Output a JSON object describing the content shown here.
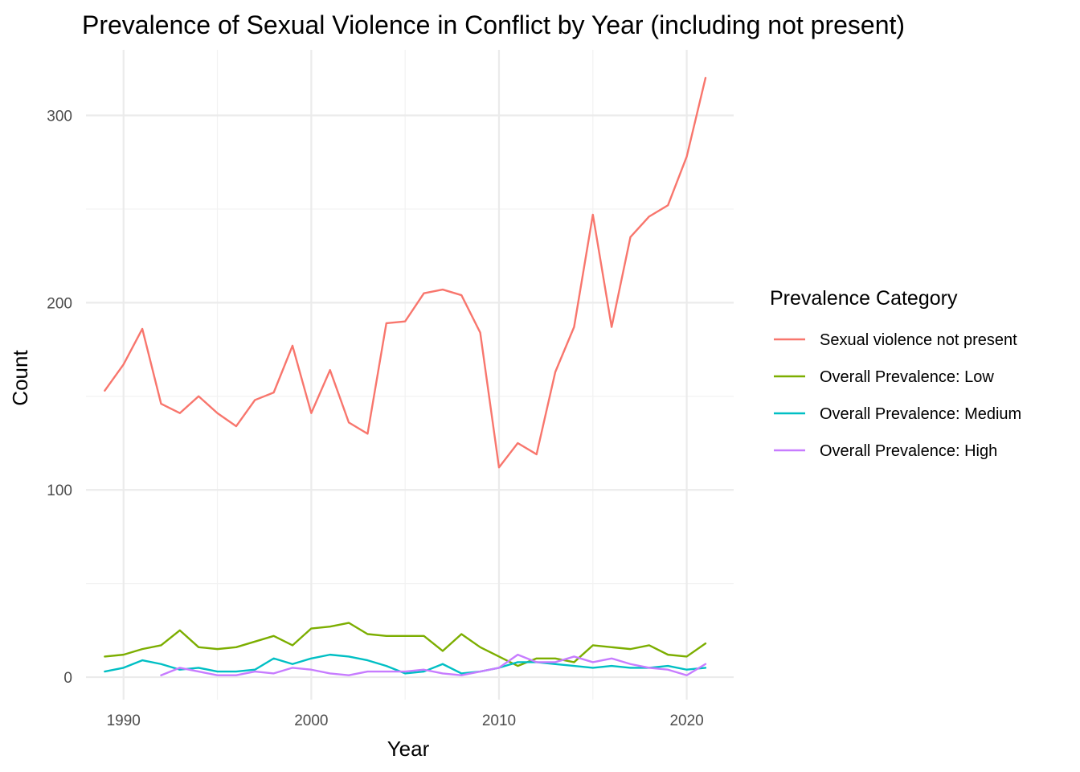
{
  "chart_data": {
    "type": "line",
    "title": "Prevalence of Sexual Violence in Conflict by Year (including not present)",
    "xlabel": "Year",
    "ylabel": "Count",
    "xlim": [
      1988,
      2022.5
    ],
    "ylim": [
      -12,
      335
    ],
    "x_ticks": [
      1990,
      2000,
      2010,
      2020
    ],
    "x_minor_ticks": [
      1995,
      2005,
      2015
    ],
    "y_ticks": [
      0,
      100,
      200,
      300
    ],
    "y_minor_ticks": [
      50,
      150,
      250
    ],
    "grid": true,
    "legend": {
      "title": "Prevalence Category",
      "position": "right"
    },
    "series": [
      {
        "name": "Sexual violence not present",
        "color": "#F8766D",
        "x": [
          1989,
          1990,
          1991,
          1992,
          1993,
          1994,
          1995,
          1996,
          1997,
          1998,
          1999,
          2000,
          2001,
          2002,
          2003,
          2004,
          2005,
          2006,
          2007,
          2008,
          2009,
          2010,
          2011,
          2012,
          2013,
          2014,
          2015,
          2016,
          2017,
          2018,
          2019,
          2020,
          2021
        ],
        "values": [
          153,
          167,
          186,
          146,
          141,
          150,
          141,
          134,
          148,
          152,
          177,
          141,
          164,
          136,
          130,
          189,
          190,
          205,
          207,
          204,
          184,
          112,
          125,
          119,
          163,
          187,
          247,
          187,
          235,
          246,
          252,
          278,
          320
        ]
      },
      {
        "name": "Overall Prevalence: Low",
        "color": "#7CAE00",
        "x": [
          1989,
          1990,
          1991,
          1992,
          1993,
          1994,
          1995,
          1996,
          1997,
          1998,
          1999,
          2000,
          2001,
          2002,
          2003,
          2004,
          2005,
          2006,
          2007,
          2008,
          2009,
          2010,
          2011,
          2012,
          2013,
          2014,
          2015,
          2016,
          2017,
          2018,
          2019,
          2020,
          2021
        ],
        "values": [
          11,
          12,
          15,
          17,
          25,
          16,
          15,
          16,
          19,
          22,
          17,
          26,
          27,
          29,
          23,
          22,
          22,
          22,
          14,
          23,
          16,
          11,
          6,
          10,
          10,
          8,
          17,
          16,
          15,
          17,
          12,
          11,
          18
        ]
      },
      {
        "name": "Overall Prevalence: Medium",
        "color": "#00BFC4",
        "x": [
          1989,
          1990,
          1991,
          1992,
          1993,
          1994,
          1995,
          1996,
          1997,
          1998,
          1999,
          2000,
          2001,
          2002,
          2003,
          2004,
          2005,
          2006,
          2007,
          2008,
          2009,
          2010,
          2011,
          2012,
          2013,
          2014,
          2015,
          2016,
          2017,
          2018,
          2019,
          2020,
          2021
        ],
        "values": [
          3,
          5,
          9,
          7,
          4,
          5,
          3,
          3,
          4,
          10,
          7,
          10,
          12,
          11,
          9,
          6,
          2,
          3,
          7,
          2,
          3,
          5,
          8,
          8,
          7,
          6,
          5,
          6,
          5,
          5,
          6,
          4,
          5
        ]
      },
      {
        "name": "Overall Prevalence: High",
        "color": "#C77CFF",
        "x": [
          1992,
          1993,
          1994,
          1995,
          1996,
          1997,
          1998,
          1999,
          2000,
          2001,
          2002,
          2003,
          2004,
          2005,
          2006,
          2007,
          2008,
          2009,
          2010,
          2011,
          2012,
          2013,
          2014,
          2015,
          2016,
          2017,
          2018,
          2019,
          2020,
          2021
        ],
        "values": [
          1,
          5,
          3,
          1,
          1,
          3,
          2,
          5,
          4,
          2,
          1,
          3,
          3,
          3,
          4,
          2,
          1,
          3,
          5,
          12,
          8,
          8,
          11,
          8,
          10,
          7,
          5,
          4,
          1,
          7
        ]
      }
    ]
  }
}
